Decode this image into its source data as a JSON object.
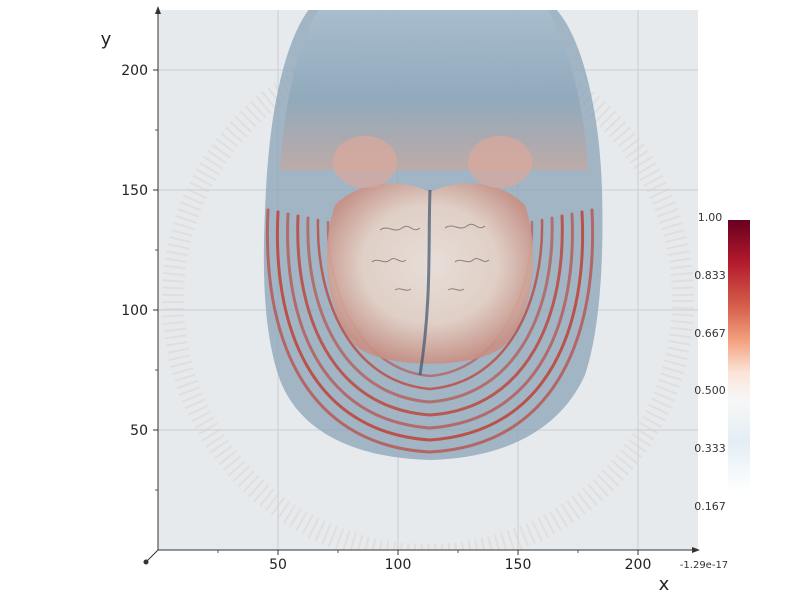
{
  "chart_data": {
    "type": "heatmap",
    "title": "",
    "xlabel": "x",
    "ylabel": "y",
    "xlim": [
      0,
      225
    ],
    "ylim": [
      0,
      225
    ],
    "x_ticks": [
      50,
      100,
      150,
      200
    ],
    "y_ticks": [
      50,
      100,
      150,
      200
    ],
    "x_tick_labels": [
      "50",
      "100",
      "150",
      "200"
    ],
    "y_tick_labels": [
      "50",
      "100",
      "150",
      "200"
    ],
    "z_corner_label": "-1.29e-17",
    "grid": true,
    "colorscale": "RdBu (reversed)",
    "colorbar": {
      "range": [
        0.0,
        1.0
      ],
      "tick_values": [
        1.0,
        0.833,
        0.667,
        0.5,
        0.333,
        0.167
      ],
      "tick_labels": [
        "1.00",
        "0.833",
        "0.667",
        "0.500",
        "0.333",
        "0.167"
      ],
      "colors": [
        "#67001f",
        "#b2182b",
        "#d6604d",
        "#f4a582",
        "#fddbc7",
        "#f7f7f7",
        "#d1e5f0",
        "#92c5de"
      ]
    },
    "volume_outline_description_colors": {
      "outer": "#6f8fa8",
      "inner_rings": "#c0392b",
      "core": "#e8d6cc",
      "background": "#e6eaed"
    }
  }
}
